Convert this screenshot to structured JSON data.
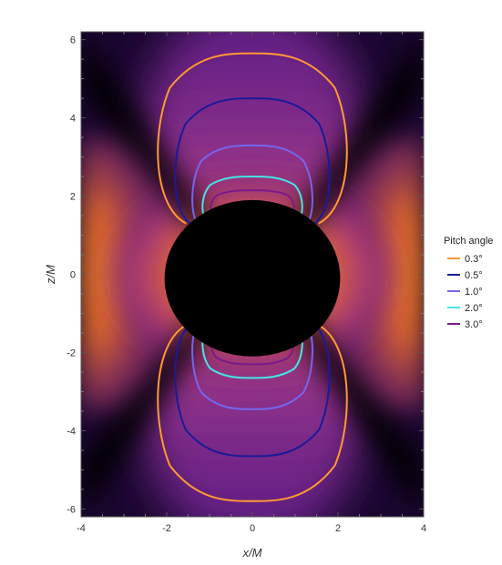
{
  "chart_data": {
    "type": "heatmap",
    "title": "",
    "xlabel": "x/M",
    "ylabel": "z/M",
    "xlim": [
      -4,
      4
    ],
    "ylim": [
      -6.2,
      6.2
    ],
    "x_ticks": [
      -4,
      -2,
      0,
      2,
      4
    ],
    "x_tick_labels": [
      "-4",
      "-2",
      "0",
      "2",
      "4"
    ],
    "y_ticks": [
      -6,
      -4,
      -2,
      0,
      2,
      4,
      6
    ],
    "y_tick_labels": [
      "-6",
      "-4",
      "-2",
      "0",
      "2",
      "4",
      "6"
    ],
    "grid": false,
    "colormap": [
      "#000000",
      "#3d0b54",
      "#7a2a8c",
      "#c2427f",
      "#ff8a1c"
    ],
    "shadow": {
      "center": [
        0,
        -0.1
      ],
      "radius_x": 2.05,
      "radius_y": 2.0,
      "color": "#000000"
    },
    "legend": {
      "title": "Pitch angle",
      "placement": "right",
      "entries": [
        {
          "label": "0.3°",
          "color": "#ff9a33"
        },
        {
          "label": "0.5°",
          "color": "#1a1a99"
        },
        {
          "label": "1.0°",
          "color": "#7466ee"
        },
        {
          "label": "2.0°",
          "color": "#44e5e5"
        },
        {
          "label": "3.0°",
          "color": "#7a1a8a"
        }
      ]
    },
    "series": [
      {
        "name": "0.3°",
        "color": "#ff9a33",
        "z_top": 5.65,
        "z_bottom": -5.8,
        "half_width": 2.35,
        "x_junction": 1.55,
        "z_junction": 1.3
      },
      {
        "name": "0.5°",
        "color": "#1a1a99",
        "z_top": 4.5,
        "z_bottom": -4.65,
        "half_width": 1.9,
        "x_junction": 1.45,
        "z_junction": 1.3
      },
      {
        "name": "1.0°",
        "color": "#7466ee",
        "z_top": 3.3,
        "z_bottom": -3.45,
        "half_width": 1.45,
        "x_junction": 1.3,
        "z_junction": 1.35
      },
      {
        "name": "2.0°",
        "color": "#44e5e5",
        "z_top": 2.5,
        "z_bottom": -2.65,
        "half_width": 1.2,
        "x_junction": 1.1,
        "z_junction": 1.45
      },
      {
        "name": "3.0°",
        "color": "#7a1a8a",
        "z_top": 2.15,
        "z_bottom": -2.3,
        "half_width": 1.0,
        "x_junction": 0.95,
        "z_junction": 1.55
      }
    ]
  }
}
